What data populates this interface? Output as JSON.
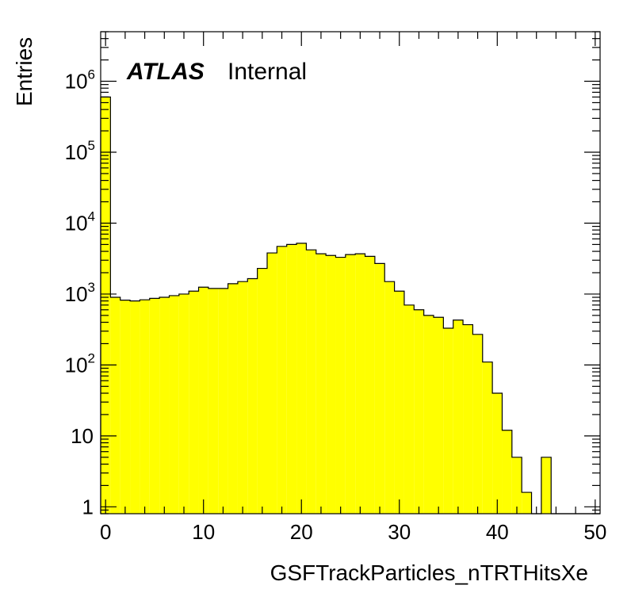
{
  "chart_data": {
    "type": "bar",
    "subtype": "histogram",
    "xlabel": "GSFTrackParticles_nTRTHitsXe",
    "ylabel": "Entries",
    "label_bold": "ATLAS",
    "label_text": "Internal",
    "xlim": [
      -0.5,
      50.5
    ],
    "ylim": [
      0.8,
      5000000
    ],
    "yscale": "log",
    "grid": false,
    "fill_color": "#ffff00",
    "line_color": "#000000",
    "x_ticks": [
      0,
      10,
      20,
      30,
      40,
      50
    ],
    "x_tick_labels": [
      "0",
      "10",
      "20",
      "30",
      "40",
      "50"
    ],
    "y_ticks": [
      {
        "value": 1,
        "base": "1",
        "exp": ""
      },
      {
        "value": 10,
        "base": "10",
        "exp": ""
      },
      {
        "value": 100,
        "base": "10",
        "exp": "2"
      },
      {
        "value": 1000,
        "base": "10",
        "exp": "3"
      },
      {
        "value": 10000,
        "base": "10",
        "exp": "4"
      },
      {
        "value": 100000,
        "base": "10",
        "exp": "5"
      },
      {
        "value": 1000000,
        "base": "10",
        "exp": "6"
      }
    ],
    "bin_low": -0.5,
    "bin_width": 1,
    "values": [
      600000,
      900,
      820,
      800,
      830,
      870,
      900,
      950,
      1000,
      1100,
      1250,
      1200,
      1200,
      1400,
      1500,
      1650,
      2300,
      3800,
      4700,
      5000,
      5200,
      4200,
      3700,
      3500,
      3300,
      3600,
      3700,
      3400,
      2700,
      1500,
      1100,
      700,
      600,
      500,
      470,
      330,
      430,
      370,
      270,
      110,
      40,
      12,
      5,
      1.6,
      0,
      5,
      0,
      0,
      0,
      0,
      0
    ]
  }
}
